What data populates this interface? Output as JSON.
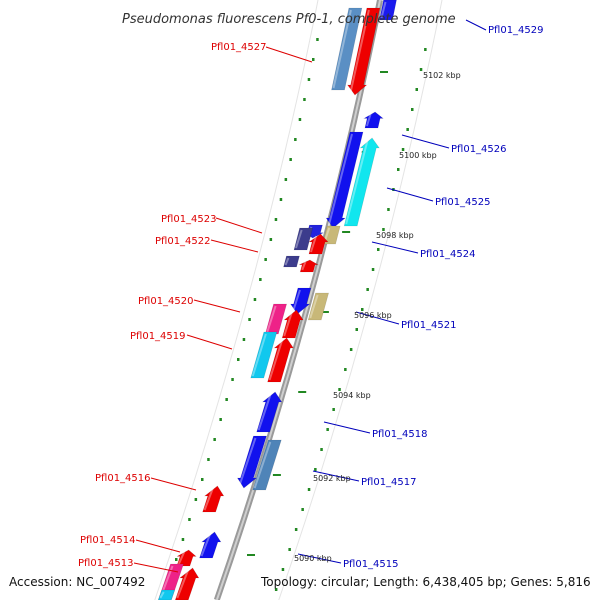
{
  "title": "Pseudomonas fluorescens Pf0-1, complete genome",
  "footer": {
    "accession": "Accession: NC_007492",
    "topology": "Topology: circular; Length: 6,438,405 bp; Genes: 5,816"
  },
  "colors": {
    "left_label": "#dd0000",
    "right_label": "#0000bb",
    "backbone": "#888888",
    "track_dots": "#228822",
    "kbp_tick": "#228822"
  },
  "kbp_marks": [
    "5102 kbp",
    "5100 kbp",
    "5098 kbp",
    "5096 kbp",
    "5094 kbp",
    "5092 kbp",
    "5090 kbp"
  ],
  "left_labels": [
    "Pfl01_4527",
    "Pfl01_4523",
    "Pfl01_4522",
    "Pfl01_4520",
    "Pfl01_4519",
    "Pfl01_4516",
    "Pfl01_4514",
    "Pfl01_4513"
  ],
  "right_labels": [
    "Pfl01_4529",
    "Pfl01_4526",
    "Pfl01_4525",
    "Pfl01_4524",
    "Pfl01_4521",
    "Pfl01_4518",
    "Pfl01_4517",
    "Pfl01_4515"
  ]
}
